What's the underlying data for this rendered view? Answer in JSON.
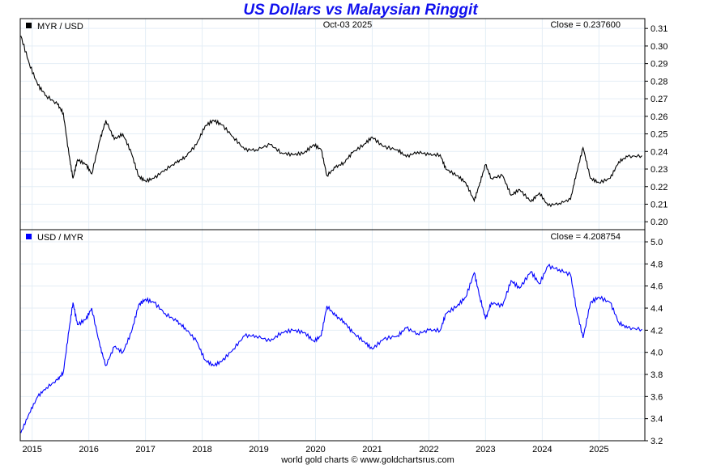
{
  "title": "US Dollars vs Malaysian Ringgit",
  "footer": "world gold charts © www.goldchartsrus.com",
  "top_panel": {
    "legend": "MYR / USD",
    "date": "Oct-03  2025",
    "close": "Close = 0.237600",
    "color": "#000000"
  },
  "bottom_panel": {
    "legend": "USD / MYR",
    "close": "Close = 4.208754",
    "color": "#0000ff"
  },
  "chart_data": {
    "type": "line",
    "title": "US Dollars vs Malaysian Ringgit",
    "x_ticks": [
      "2015",
      "2016",
      "2017",
      "2018",
      "2019",
      "2020",
      "2021",
      "2022",
      "2023",
      "2024",
      "2025"
    ],
    "xlim": [
      2014.79,
      2025.81
    ],
    "panels": [
      {
        "name": "MYR / USD",
        "ylim": [
          0.1955,
          0.3156
        ],
        "y_ticks": [
          "0.31",
          "0.30",
          "0.29",
          "0.28",
          "0.27",
          "0.26",
          "0.25",
          "0.24",
          "0.23",
          "0.22",
          "0.21",
          "0.20"
        ],
        "derived": "1 / USD_MYR"
      },
      {
        "name": "USD / MYR",
        "ylim": [
          3.2,
          5.11
        ],
        "y_ticks": [
          "5.0",
          "4.8",
          "4.6",
          "4.4",
          "4.2",
          "4.0",
          "3.8",
          "3.6",
          "3.4",
          "3.2"
        ]
      }
    ],
    "x": [
      2014.8,
      2014.95,
      2015.1,
      2015.25,
      2015.45,
      2015.55,
      2015.65,
      2015.72,
      2015.8,
      2015.95,
      2016.05,
      2016.2,
      2016.3,
      2016.45,
      2016.6,
      2016.75,
      2016.88,
      2017.0,
      2017.15,
      2017.35,
      2017.55,
      2017.7,
      2017.9,
      2018.05,
      2018.2,
      2018.35,
      2018.55,
      2018.75,
      2018.95,
      2019.2,
      2019.4,
      2019.6,
      2019.8,
      2019.97,
      2020.1,
      2020.2,
      2020.35,
      2020.5,
      2020.65,
      2020.85,
      2021.0,
      2021.2,
      2021.45,
      2021.6,
      2021.8,
      2022.0,
      2022.2,
      2022.3,
      2022.5,
      2022.65,
      2022.8,
      2022.9,
      2023.0,
      2023.1,
      2023.3,
      2023.45,
      2023.6,
      2023.8,
      2023.95,
      2024.1,
      2024.3,
      2024.5,
      2024.6,
      2024.72,
      2024.85,
      2025.0,
      2025.2,
      2025.35,
      2025.5,
      2025.76
    ],
    "usd_myr": [
      3.27,
      3.45,
      3.6,
      3.68,
      3.75,
      3.82,
      4.2,
      4.45,
      4.25,
      4.3,
      4.4,
      4.05,
      3.88,
      4.05,
      4.0,
      4.18,
      4.43,
      4.48,
      4.45,
      4.35,
      4.28,
      4.22,
      4.1,
      3.93,
      3.88,
      3.92,
      4.03,
      4.15,
      4.15,
      4.1,
      4.18,
      4.2,
      4.18,
      4.1,
      4.15,
      4.42,
      4.33,
      4.28,
      4.18,
      4.1,
      4.03,
      4.12,
      4.15,
      4.22,
      4.17,
      4.2,
      4.2,
      4.35,
      4.42,
      4.5,
      4.72,
      4.5,
      4.3,
      4.45,
      4.42,
      4.65,
      4.58,
      4.73,
      4.62,
      4.78,
      4.75,
      4.7,
      4.4,
      4.13,
      4.45,
      4.5,
      4.45,
      4.27,
      4.22,
      4.209
    ]
  }
}
